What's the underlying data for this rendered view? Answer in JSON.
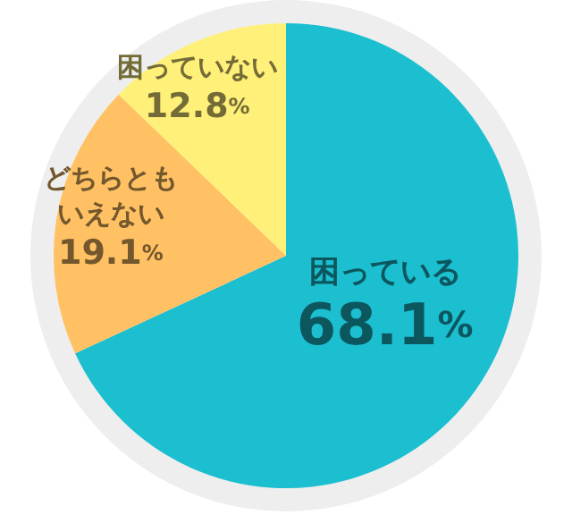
{
  "chart_data": {
    "type": "pie",
    "categories": [
      "困っている",
      "どちらともいえない",
      "困っていない"
    ],
    "values": [
      68.1,
      19.1,
      12.8
    ],
    "colors": [
      "#1bbfd0",
      "#ffc163",
      "#fff07a"
    ],
    "value_labels": [
      "68.1%",
      "19.1%",
      "12.8%"
    ],
    "legend": false
  }
}
